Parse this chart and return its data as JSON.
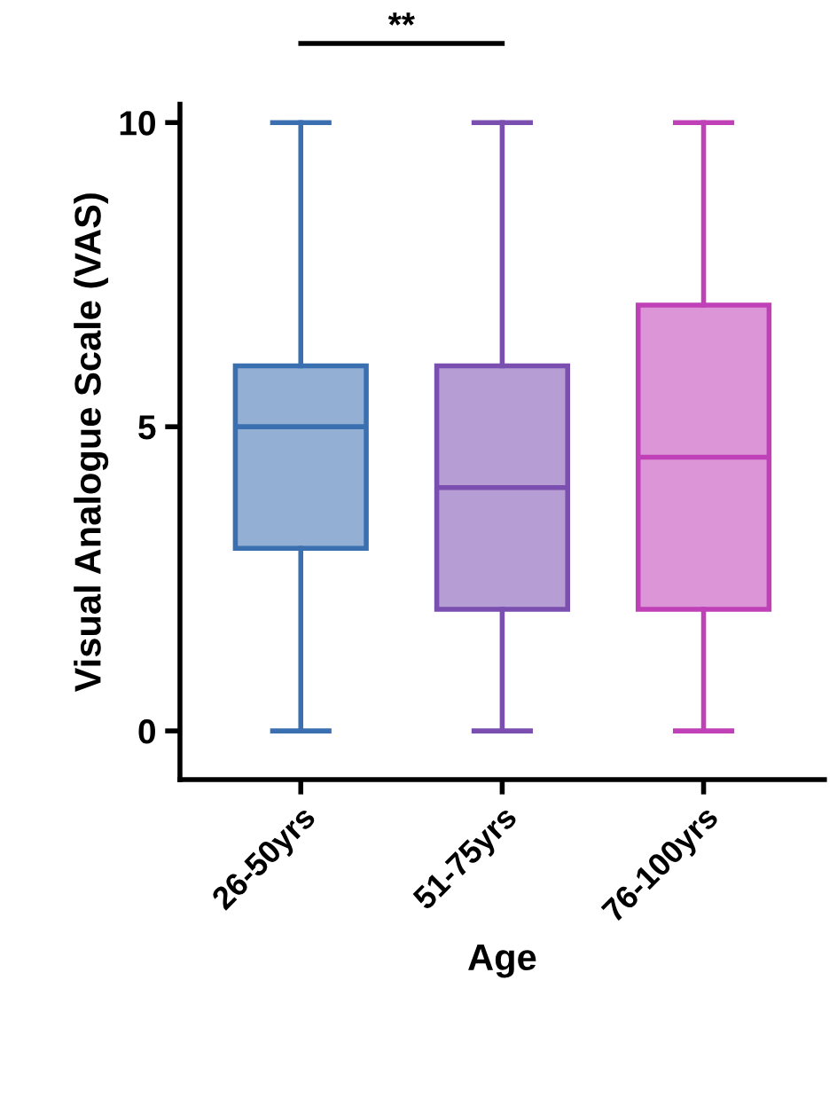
{
  "chart_data": {
    "type": "box",
    "xlabel": "Age",
    "ylabel": "Visual Analogue Scale (VAS)",
    "categories": [
      "26-50yrs",
      "51-75yrs",
      "76-100yrs"
    ],
    "boxes": [
      {
        "low": 0,
        "q1": 3,
        "median": 5,
        "q3": 6,
        "high": 10
      },
      {
        "low": 0,
        "q1": 2,
        "median": 4,
        "q3": 6,
        "high": 10
      },
      {
        "low": 0,
        "q1": 2,
        "median": 4.5,
        "q3": 7,
        "high": 10
      }
    ],
    "colors": [
      "#3a6fb0",
      "#7a4fb0",
      "#c040b8"
    ],
    "ylim": [
      -0.8,
      10.3
    ],
    "yticks": [
      0,
      5,
      10
    ],
    "grid": false,
    "legend": false,
    "annotations": [
      "**"
    ]
  }
}
